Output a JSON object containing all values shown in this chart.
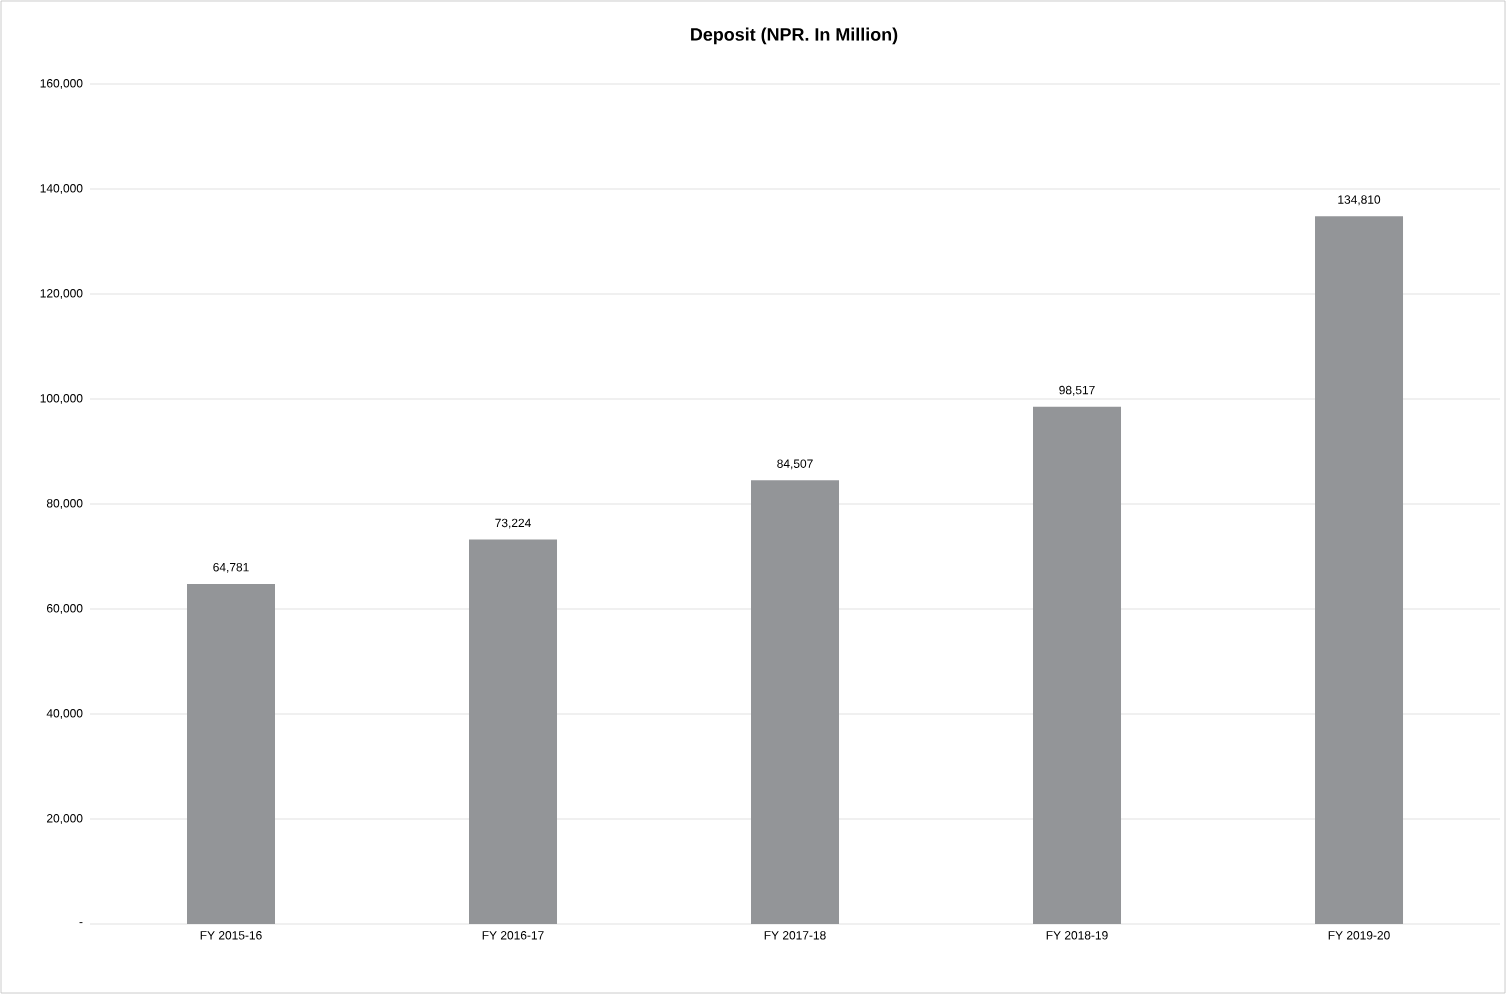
{
  "chart_data": {
    "type": "bar",
    "title": "Deposit (NPR. In Million)",
    "categories": [
      "FY 2015-16",
      "FY 2016-17",
      "FY 2017-18",
      "FY 2018-19",
      "FY 2019-20"
    ],
    "values": [
      64781,
      73224,
      84507,
      98517,
      134810
    ],
    "value_labels": [
      "64,781",
      "73,224",
      "84,507",
      "98,517",
      "134,810"
    ],
    "color": "#939598",
    "ylim": [
      0,
      160000
    ],
    "yticks": [
      {
        "value": 0,
        "label": "-"
      },
      {
        "value": 20000,
        "label": "20,000"
      },
      {
        "value": 40000,
        "label": "40,000"
      },
      {
        "value": 60000,
        "label": "60,000"
      },
      {
        "value": 80000,
        "label": "80,000"
      },
      {
        "value": 100000,
        "label": "100,000"
      },
      {
        "value": 120000,
        "label": "120,000"
      },
      {
        "value": 140000,
        "label": "140,000"
      },
      {
        "value": 160000,
        "label": "160,000"
      }
    ],
    "grid": "y"
  }
}
